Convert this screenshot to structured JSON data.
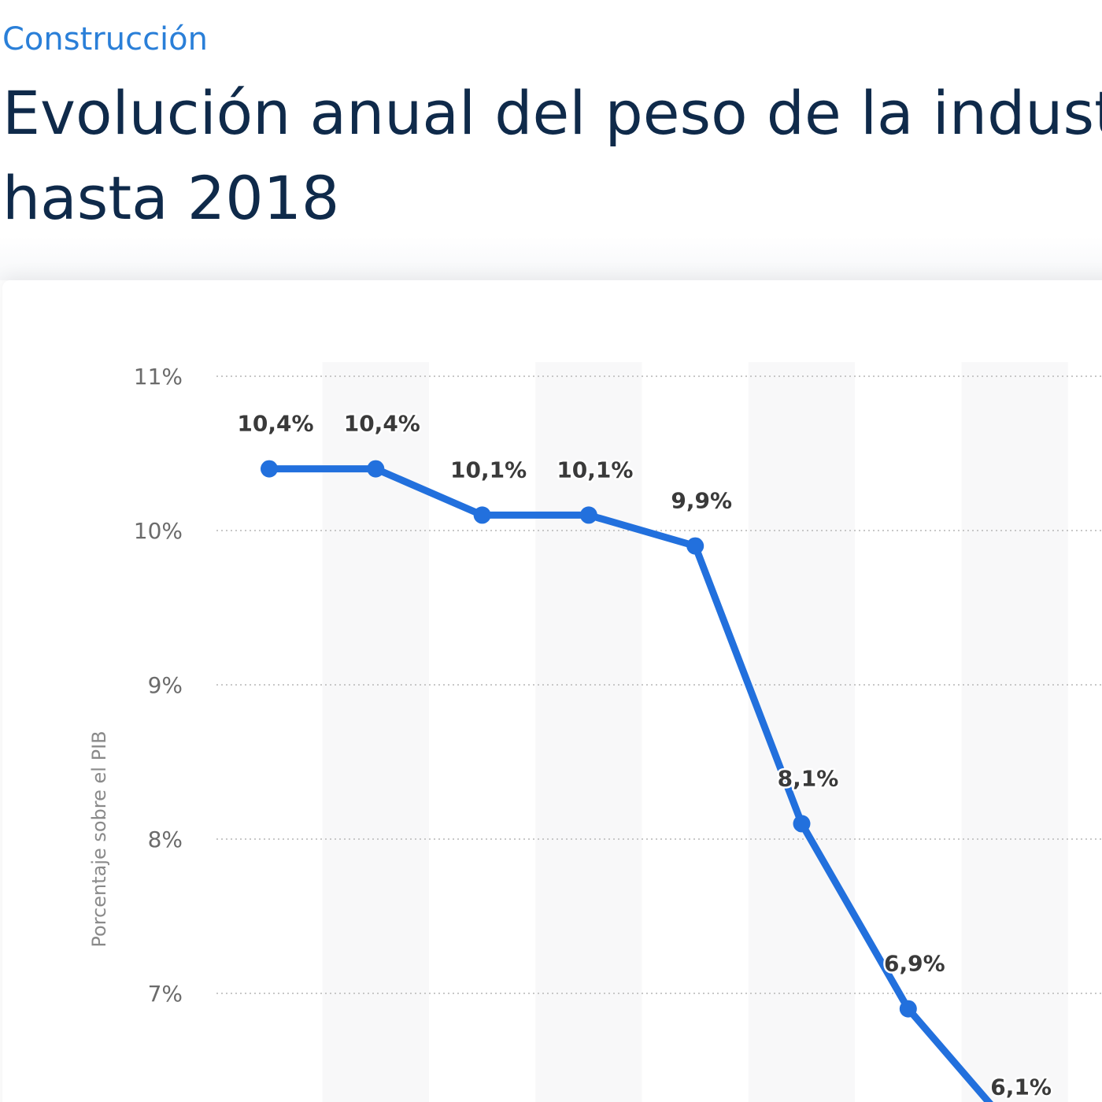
{
  "header": {
    "topic": "Construcción",
    "title_line1": "Evolución anual del peso de la industria",
    "title_line2": "hasta 2018"
  },
  "colors": {
    "topic": "#2a7fd8",
    "title": "#0f2a4a",
    "line": "#2270dd",
    "stripe": "#f8f8f9",
    "grid": "#c8c8c8"
  },
  "chart_data": {
    "type": "line",
    "ylabel": "Porcentaje sobre el PIB",
    "yticks": [
      "7%",
      "8%",
      "9%",
      "10%",
      "11%"
    ],
    "ylim": [
      6,
      11
    ],
    "grid": true,
    "series": [
      {
        "values": [
          10.4,
          10.4,
          10.1,
          10.1,
          9.9,
          8.1,
          6.9,
          6.1
        ],
        "labels": [
          "10,4%",
          "10,4%",
          "10,1%",
          "10,1%",
          "9,9%",
          "8,1%",
          "6,9%",
          "6,1%"
        ]
      }
    ]
  }
}
